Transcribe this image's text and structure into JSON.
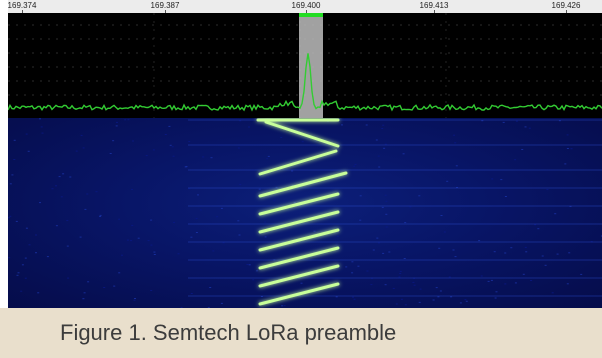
{
  "ruler": {
    "ticks": [
      "169.374",
      "169.387",
      "169.400",
      "169.413",
      "169.426"
    ]
  },
  "spectrum": {
    "trace_color": "#33cc33",
    "passband_color": "#bdbdbd",
    "marker_color": "#22dd22"
  },
  "waterfall": {
    "chirp_color": "#c8ff9a"
  },
  "caption": {
    "text": "Figure 1. Semtech LoRa preamble"
  }
}
